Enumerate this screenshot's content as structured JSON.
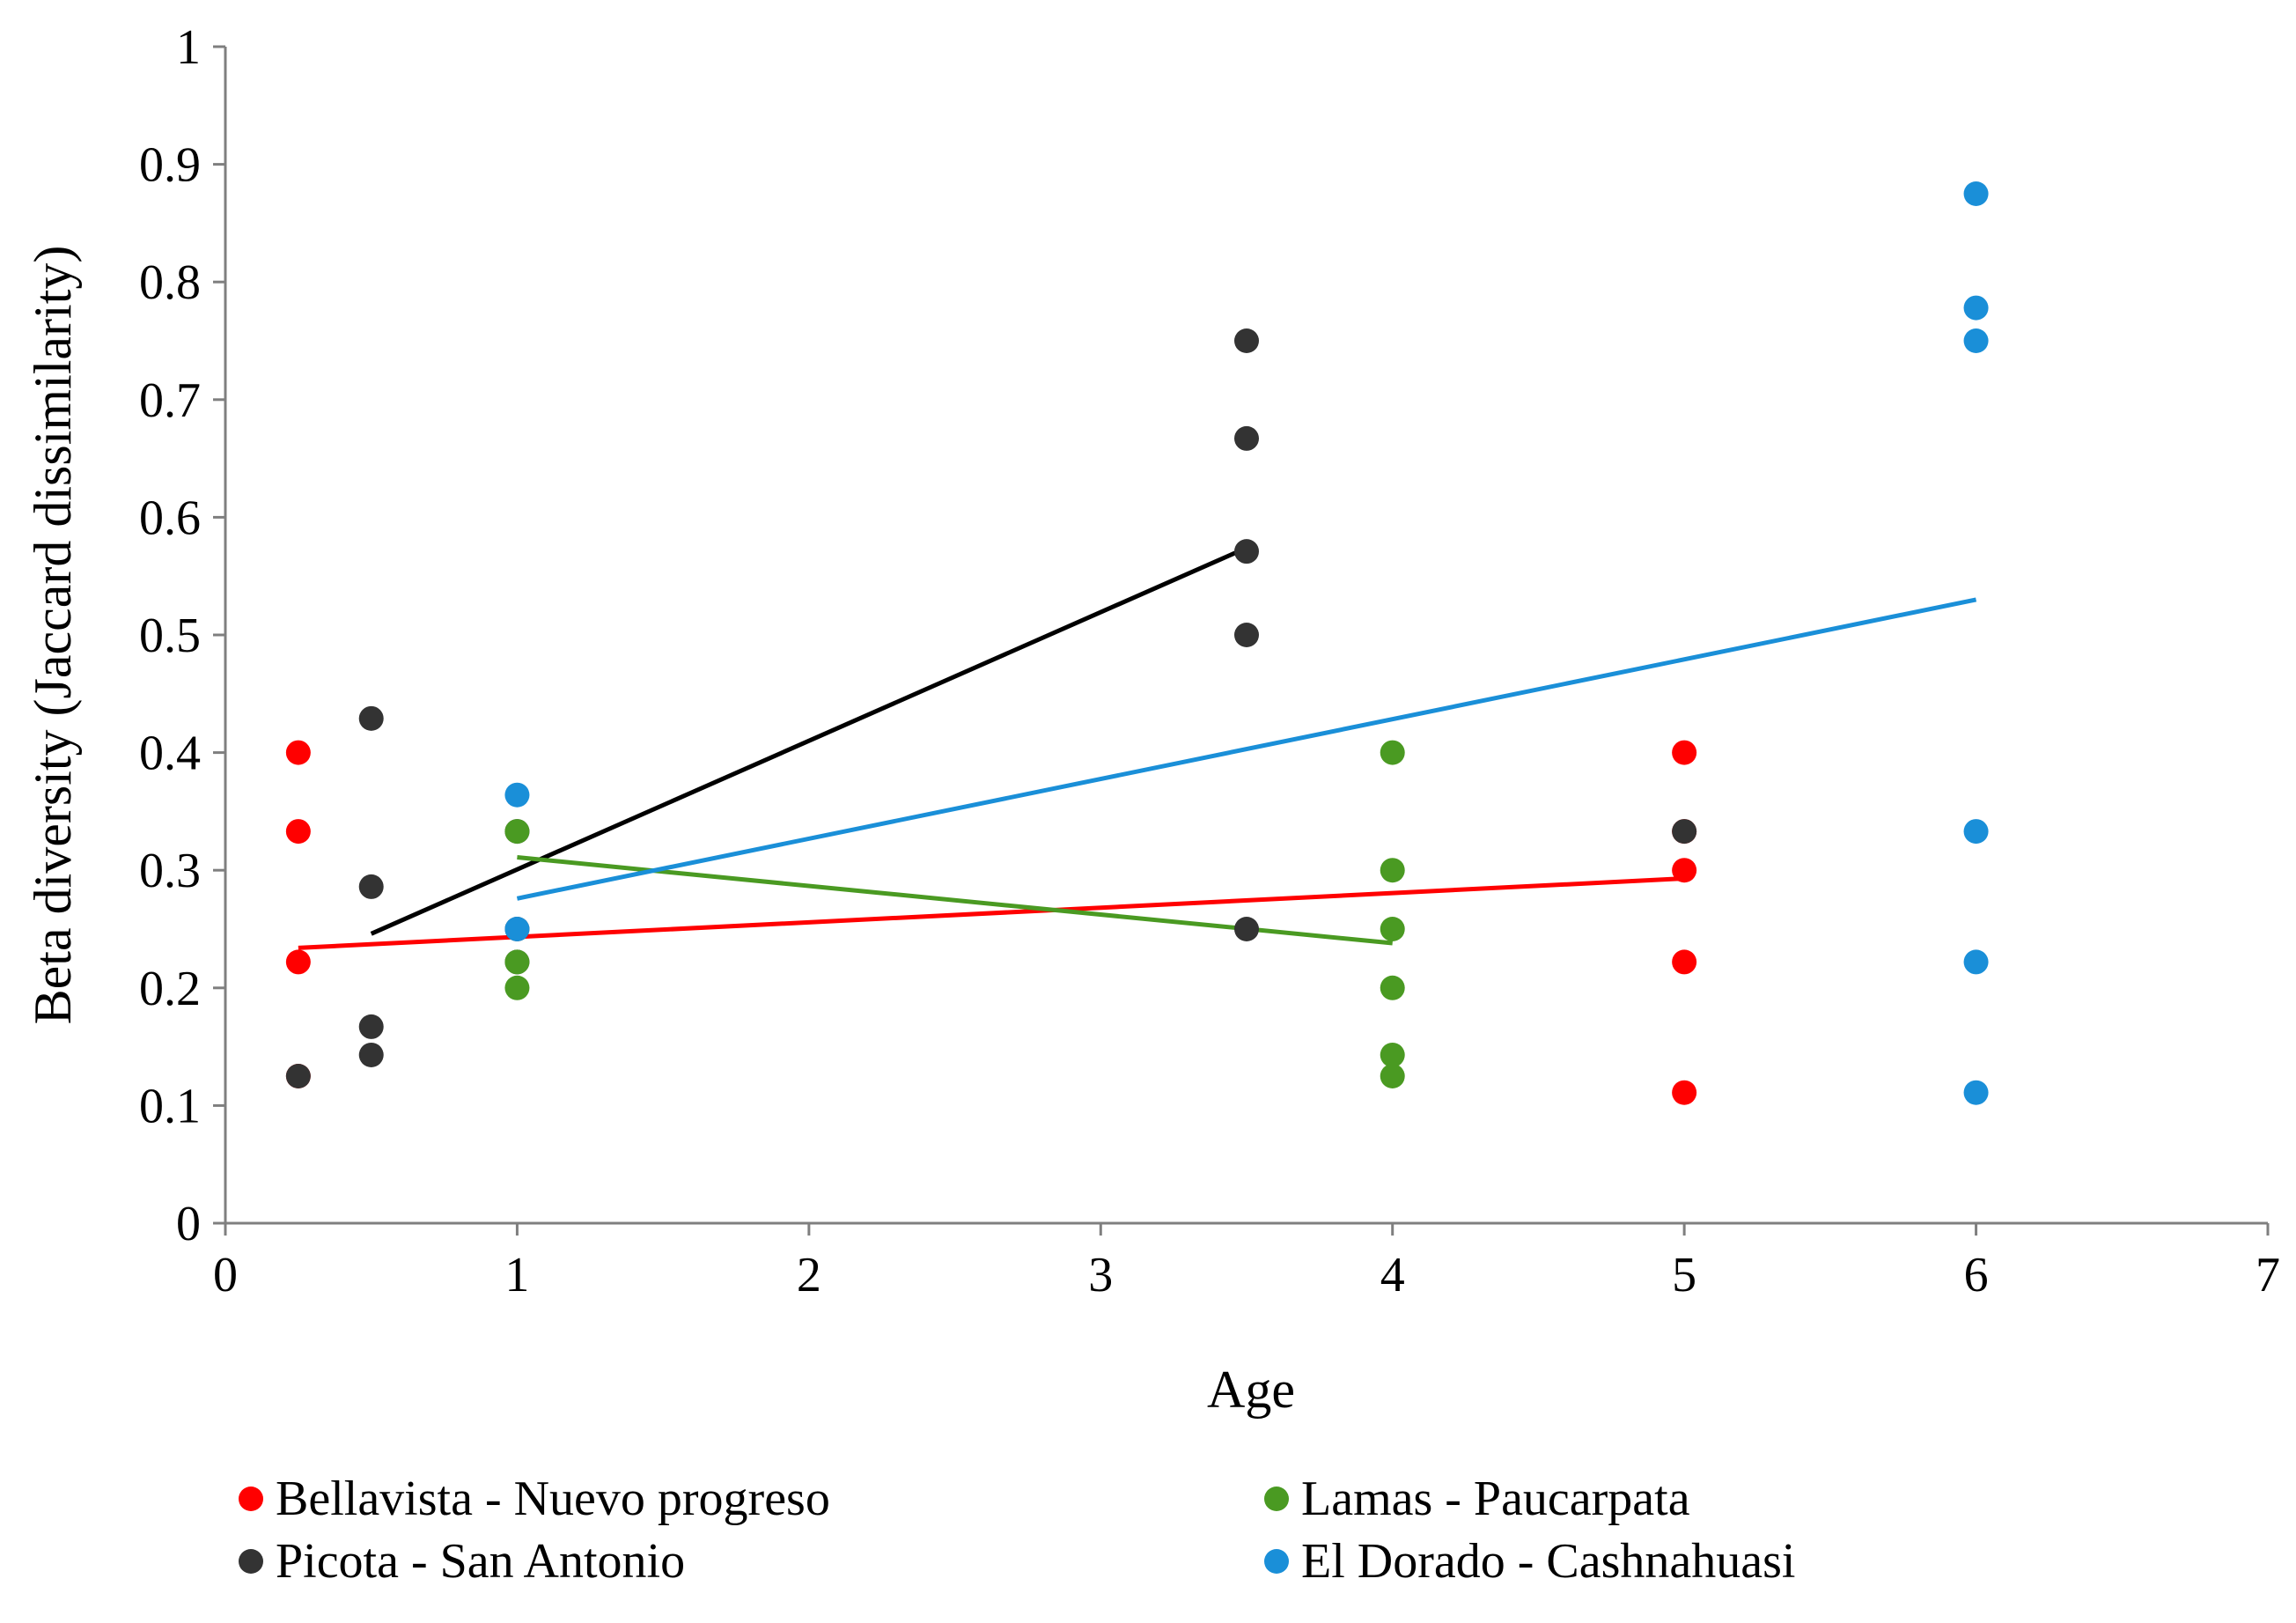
{
  "chart_data": {
    "type": "scatter",
    "title": "",
    "xlabel": "Age",
    "ylabel": "Beta diversity (Jaccard dissimilarity)",
    "xlim": [
      0,
      7
    ],
    "ylim": [
      0,
      1
    ],
    "x_ticks": [
      "0",
      "1",
      "2",
      "3",
      "4",
      "5",
      "6",
      "7"
    ],
    "y_ticks": [
      "0",
      "0.1",
      "0.2",
      "0.3",
      "0.4",
      "0.5",
      "0.6",
      "0.7",
      "0.8",
      "0.9",
      "1"
    ],
    "grid": false,
    "legend_position": "bottom",
    "series": [
      {
        "name": "Bellavista - Nuevo progreso",
        "color": "#ff0000",
        "points": [
          [
            0.25,
            0.4
          ],
          [
            0.25,
            0.333
          ],
          [
            0.25,
            0.222
          ],
          [
            0.25,
            0.125
          ],
          [
            5,
            0.4
          ],
          [
            5,
            0.333
          ],
          [
            5,
            0.3
          ],
          [
            5,
            0.222
          ],
          [
            5,
            0.111
          ]
        ],
        "trendline": [
          [
            0.25,
            0.234
          ],
          [
            5,
            0.293
          ]
        ]
      },
      {
        "name": "Picota - San Antonio",
        "color": "#333333",
        "trend_color": "#000000",
        "points": [
          [
            0.25,
            0.125
          ],
          [
            0.5,
            0.429
          ],
          [
            0.5,
            0.286
          ],
          [
            0.5,
            0.167
          ],
          [
            0.5,
            0.143
          ],
          [
            1,
            0.333
          ],
          [
            1,
            0.25
          ],
          [
            1,
            0.222
          ],
          [
            3.5,
            0.75
          ],
          [
            3.5,
            0.667
          ],
          [
            3.5,
            0.571
          ],
          [
            3.5,
            0.5
          ],
          [
            3.5,
            0.25
          ],
          [
            5,
            0.333
          ]
        ],
        "trendline": [
          [
            0.5,
            0.246
          ],
          [
            3.5,
            0.574
          ]
        ]
      },
      {
        "name": "Lamas - Paucarpata",
        "color": "#4a9a22",
        "points": [
          [
            1,
            0.333
          ],
          [
            1,
            0.222
          ],
          [
            1,
            0.2
          ],
          [
            4,
            0.4
          ],
          [
            4,
            0.3
          ],
          [
            4,
            0.25
          ],
          [
            4,
            0.2
          ],
          [
            4,
            0.143
          ],
          [
            4,
            0.125
          ]
        ],
        "trendline": [
          [
            1,
            0.311
          ],
          [
            4,
            0.238
          ]
        ]
      },
      {
        "name": "El Dorado - Cashnahuasi",
        "color": "#1a8fd8",
        "points": [
          [
            1,
            0.364
          ],
          [
            1,
            0.25
          ],
          [
            6,
            0.875
          ],
          [
            6,
            0.778
          ],
          [
            6,
            0.75
          ],
          [
            6,
            0.333
          ],
          [
            6,
            0.222
          ],
          [
            6,
            0.111
          ]
        ],
        "trendline": [
          [
            1,
            0.276
          ],
          [
            6,
            0.53
          ]
        ]
      }
    ]
  }
}
